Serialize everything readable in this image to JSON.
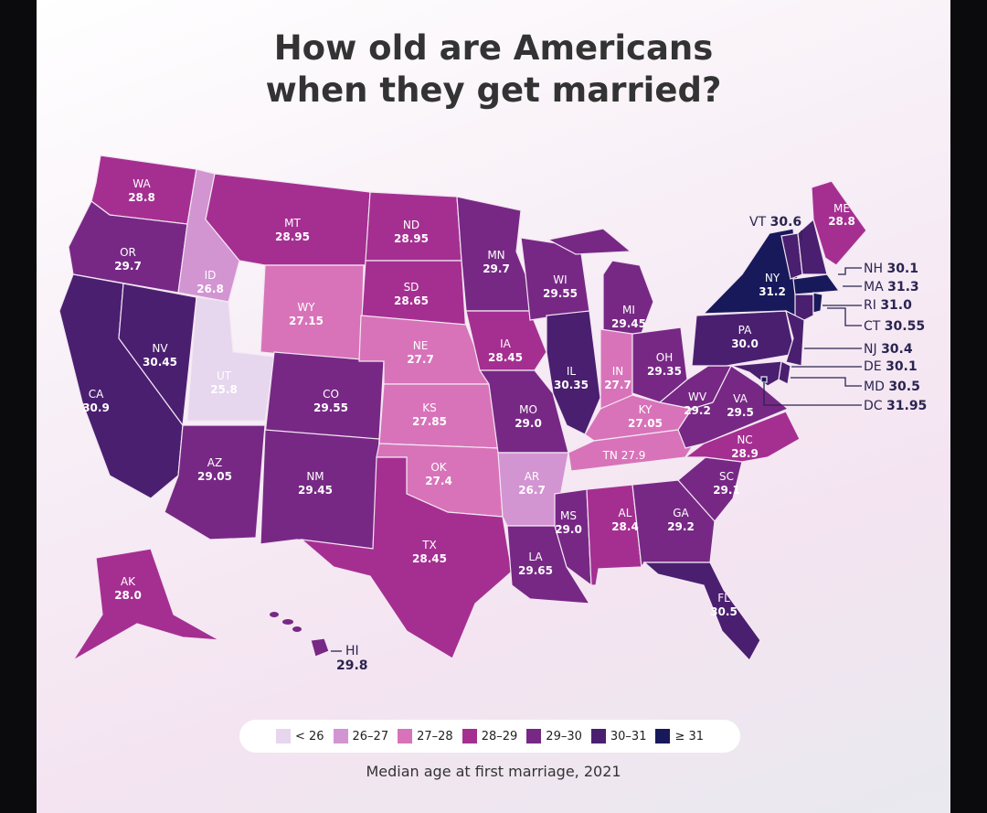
{
  "title": {
    "line1": "How old are Americans",
    "line2": "when they get married?"
  },
  "caption": "Median age at first marriage, 2021",
  "legend": [
    {
      "label": "< 26",
      "color": "#e6d6ee"
    },
    {
      "label": "26–27",
      "color": "#d394d2"
    },
    {
      "label": "27–28",
      "color": "#d873b9"
    },
    {
      "label": "28–29",
      "color": "#a52f91"
    },
    {
      "label": "29–30",
      "color": "#772885"
    },
    {
      "label": "30–31",
      "color": "#4a1f70"
    },
    {
      "label": "≥ 31",
      "color": "#17195a"
    }
  ],
  "states": {
    "WA": "28.8",
    "OR": "29.7",
    "CA": "30.9",
    "NV": "30.45",
    "ID": "26.8",
    "MT": "28.95",
    "WY": "27.15",
    "UT": "25.8",
    "CO": "29.55",
    "AZ": "29.05",
    "NM": "29.45",
    "ND": "28.95",
    "SD": "28.65",
    "NE": "27.7",
    "KS": "27.85",
    "OK": "27.4",
    "TX": "28.45",
    "MN": "29.7",
    "IA": "28.45",
    "MO": "29.0",
    "AR": "26.7",
    "LA": "29.65",
    "WI": "29.55",
    "IL": "30.35",
    "MI": "29.45",
    "IN": "27.7",
    "OH": "29.35",
    "KY": "27.05",
    "TN": "27.9",
    "MS": "29.0",
    "AL": "28.4",
    "GA": "29.2",
    "FL": "30.5",
    "SC": "29.1",
    "NC": "28.9",
    "VA": "29.5",
    "WV": "29.2",
    "PA": "30.0",
    "NY": "31.2",
    "VT": "30.6",
    "NH": "30.1",
    "ME": "28.8",
    "MA": "31.3",
    "CT": "30.55",
    "RI": "31.0",
    "NJ": "30.4",
    "DE": "30.1",
    "MD": "30.5",
    "DC": "31.95",
    "AK": "28.0",
    "HI": "29.8"
  }
}
